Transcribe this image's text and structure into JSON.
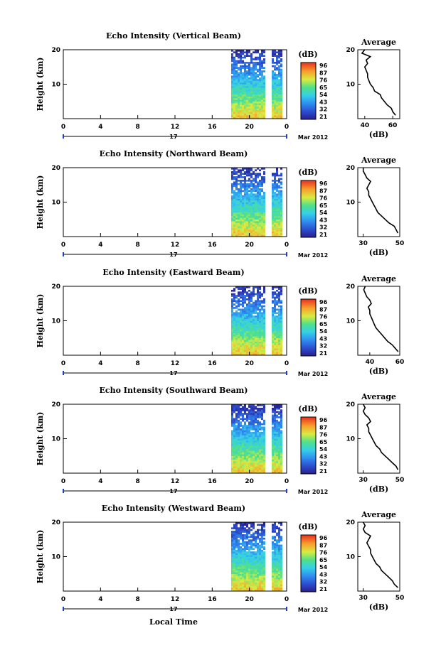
{
  "global": {
    "xlabel": "Local Time",
    "date_label": "Mar 2012",
    "day_label": "17",
    "colorbar_unit": "(dB)",
    "colorbar_ticks": [
      "96",
      "87",
      "76",
      "65",
      "54",
      "43",
      "32",
      "21"
    ],
    "avg_title": "Average",
    "avg_xlabel": "(dB)"
  },
  "chart_data": [
    {
      "type": "heatmap",
      "title": "Echo Intensity (Vertical Beam)",
      "ylabel": "Height (km)",
      "x_ticks": [
        "0",
        "4",
        "8",
        "12",
        "16",
        "20",
        "0"
      ],
      "y_ticks": [
        "20",
        "10"
      ],
      "avg_x_ticks": [
        "40",
        "60"
      ],
      "avg_xlim": [
        35,
        65
      ],
      "avg_profile": {
        "height_km": [
          1,
          2,
          3,
          4,
          5,
          6,
          7,
          8,
          9,
          10,
          11,
          12,
          13,
          14,
          15,
          16,
          17,
          18,
          19,
          20
        ],
        "db": [
          62,
          60,
          59,
          56,
          54,
          52,
          51,
          47,
          46,
          44,
          43,
          42,
          42,
          41,
          40,
          42,
          41,
          44,
          38,
          40
        ]
      }
    },
    {
      "type": "heatmap",
      "title": "Echo Intensity (Northward Beam)",
      "ylabel": "Height (km)",
      "x_ticks": [
        "0",
        "4",
        "8",
        "12",
        "16",
        "20",
        "0"
      ],
      "y_ticks": [
        "20",
        "10"
      ],
      "avg_x_ticks": [
        "30",
        "50"
      ],
      "avg_xlim": [
        27,
        50
      ],
      "avg_profile": {
        "height_km": [
          1,
          2,
          3,
          4,
          5,
          6,
          7,
          8,
          9,
          10,
          11,
          12,
          13,
          14,
          15,
          16,
          17,
          18,
          19,
          20
        ],
        "db": [
          49,
          48,
          47,
          44,
          42,
          40,
          38,
          37,
          36,
          35,
          34,
          33,
          33,
          32,
          33,
          34,
          32,
          31,
          30,
          30
        ]
      }
    },
    {
      "type": "heatmap",
      "title": "Echo Intensity (Eastward Beam)",
      "ylabel": "Height (km)",
      "x_ticks": [
        "0",
        "4",
        "8",
        "12",
        "16",
        "20",
        "0"
      ],
      "y_ticks": [
        "20",
        "10"
      ],
      "avg_x_ticks": [
        "40",
        "60"
      ],
      "avg_xlim": [
        32,
        60
      ],
      "avg_profile": {
        "height_km": [
          1,
          2,
          3,
          4,
          5,
          6,
          7,
          8,
          9,
          10,
          11,
          12,
          13,
          14,
          15,
          16,
          17,
          18,
          19,
          20
        ],
        "db": [
          59,
          57,
          55,
          52,
          50,
          48,
          46,
          44,
          43,
          42,
          41,
          40,
          40,
          39,
          41,
          40,
          38,
          37,
          36,
          37
        ]
      }
    },
    {
      "type": "heatmap",
      "title": "Echo Intensity (Southward Beam)",
      "ylabel": "Height (km)",
      "x_ticks": [
        "0",
        "4",
        "8",
        "12",
        "16",
        "20",
        "0"
      ],
      "y_ticks": [
        "20",
        "10"
      ],
      "avg_x_ticks": [
        "30",
        "50"
      ],
      "avg_xlim": [
        27,
        50
      ],
      "avg_profile": {
        "height_km": [
          1,
          2,
          3,
          4,
          5,
          6,
          7,
          8,
          9,
          10,
          11,
          12,
          13,
          14,
          15,
          16,
          17,
          18,
          19,
          20
        ],
        "db": [
          49,
          48,
          46,
          44,
          42,
          40,
          39,
          37,
          36,
          35,
          34,
          33,
          33,
          32,
          34,
          33,
          31,
          30,
          31,
          30
        ]
      }
    },
    {
      "type": "heatmap",
      "title": "Echo Intensity (Westward Beam)",
      "ylabel": "Height (km)",
      "x_ticks": [
        "0",
        "4",
        "8",
        "12",
        "16",
        "20",
        "0"
      ],
      "y_ticks": [
        "20",
        "10"
      ],
      "avg_x_ticks": [
        "30",
        "50"
      ],
      "avg_xlim": [
        27,
        50
      ],
      "avg_profile": {
        "height_km": [
          1,
          2,
          3,
          4,
          5,
          6,
          7,
          8,
          9,
          10,
          11,
          12,
          13,
          14,
          15,
          16,
          17,
          18,
          19,
          20
        ],
        "db": [
          49,
          47,
          46,
          44,
          42,
          40,
          39,
          37,
          36,
          35,
          34,
          34,
          33,
          32,
          33,
          34,
          31,
          30,
          31,
          30
        ]
      }
    }
  ]
}
